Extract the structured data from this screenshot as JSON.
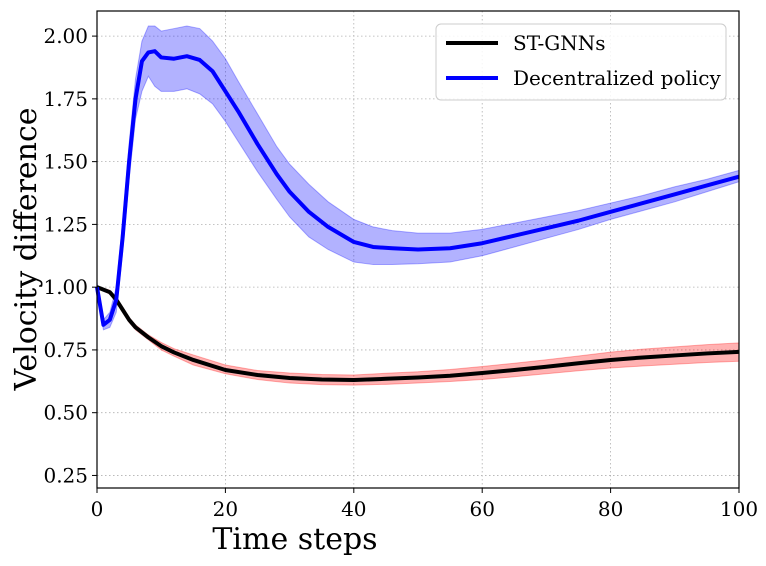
{
  "chart_data": {
    "type": "line",
    "title": "",
    "xlabel": "Time steps",
    "ylabel": "Velocity difference",
    "xlim": [
      0,
      100
    ],
    "ylim": [
      0.2,
      2.1
    ],
    "xticks": [
      0,
      20,
      40,
      60,
      80,
      100
    ],
    "xtick_labels": [
      "0",
      "20",
      "40",
      "60",
      "80",
      "100"
    ],
    "yticks": [
      0.25,
      0.5,
      0.75,
      1.0,
      1.25,
      1.5,
      1.75,
      2.0
    ],
    "ytick_labels": [
      "0.25",
      "0.50",
      "0.75",
      "1.00",
      "1.25",
      "1.50",
      "1.75",
      "2.00"
    ],
    "grid": true,
    "legend_position": "top-right",
    "series": [
      {
        "name": "ST-GNNs",
        "line_color": "#000000",
        "band_color": "#ff0000",
        "x": [
          0,
          1,
          2,
          3,
          4,
          5,
          6,
          8,
          10,
          12,
          15,
          20,
          25,
          30,
          35,
          40,
          45,
          50,
          55,
          60,
          65,
          70,
          75,
          80,
          85,
          90,
          95,
          100
        ],
        "mean": [
          1.0,
          0.99,
          0.98,
          0.95,
          0.91,
          0.87,
          0.84,
          0.8,
          0.765,
          0.74,
          0.71,
          0.67,
          0.65,
          0.638,
          0.632,
          0.63,
          0.635,
          0.64,
          0.647,
          0.658,
          0.67,
          0.683,
          0.697,
          0.71,
          0.72,
          0.728,
          0.736,
          0.742
        ],
        "lower": [
          0.995,
          0.985,
          0.972,
          0.94,
          0.9,
          0.86,
          0.83,
          0.79,
          0.75,
          0.725,
          0.69,
          0.655,
          0.632,
          0.618,
          0.612,
          0.61,
          0.613,
          0.618,
          0.624,
          0.632,
          0.643,
          0.655,
          0.667,
          0.678,
          0.686,
          0.693,
          0.7,
          0.705
        ],
        "upper": [
          1.005,
          0.995,
          0.988,
          0.96,
          0.92,
          0.88,
          0.85,
          0.81,
          0.78,
          0.755,
          0.73,
          0.69,
          0.668,
          0.658,
          0.652,
          0.65,
          0.657,
          0.663,
          0.672,
          0.684,
          0.697,
          0.711,
          0.726,
          0.741,
          0.753,
          0.762,
          0.771,
          0.778
        ]
      },
      {
        "name": "Decentralized policy",
        "line_color": "#0000ff",
        "band_color": "#0000ff",
        "x": [
          0,
          1,
          2,
          3,
          4,
          5,
          6,
          7,
          8,
          9,
          10,
          12,
          14,
          16,
          18,
          20,
          22,
          25,
          28,
          30,
          33,
          36,
          40,
          43,
          46,
          50,
          55,
          60,
          65,
          70,
          75,
          80,
          85,
          90,
          95,
          100
        ],
        "mean": [
          1.0,
          0.85,
          0.87,
          0.95,
          1.2,
          1.5,
          1.75,
          1.9,
          1.935,
          1.94,
          1.915,
          1.91,
          1.92,
          1.905,
          1.86,
          1.78,
          1.7,
          1.57,
          1.45,
          1.38,
          1.3,
          1.24,
          1.18,
          1.16,
          1.155,
          1.15,
          1.155,
          1.175,
          1.205,
          1.235,
          1.265,
          1.3,
          1.335,
          1.37,
          1.405,
          1.44
        ],
        "lower": [
          0.98,
          0.83,
          0.84,
          0.9,
          1.14,
          1.43,
          1.67,
          1.78,
          1.84,
          1.8,
          1.78,
          1.78,
          1.79,
          1.77,
          1.73,
          1.66,
          1.58,
          1.46,
          1.35,
          1.28,
          1.2,
          1.15,
          1.1,
          1.09,
          1.09,
          1.093,
          1.1,
          1.125,
          1.16,
          1.195,
          1.23,
          1.27,
          1.305,
          1.34,
          1.38,
          1.42
        ],
        "upper": [
          1.02,
          0.87,
          0.9,
          1.0,
          1.26,
          1.57,
          1.83,
          1.98,
          2.04,
          2.04,
          2.02,
          2.03,
          2.04,
          2.03,
          1.98,
          1.91,
          1.82,
          1.69,
          1.56,
          1.49,
          1.41,
          1.34,
          1.27,
          1.24,
          1.225,
          1.215,
          1.215,
          1.23,
          1.255,
          1.28,
          1.305,
          1.335,
          1.365,
          1.4,
          1.43,
          1.465
        ]
      }
    ]
  }
}
